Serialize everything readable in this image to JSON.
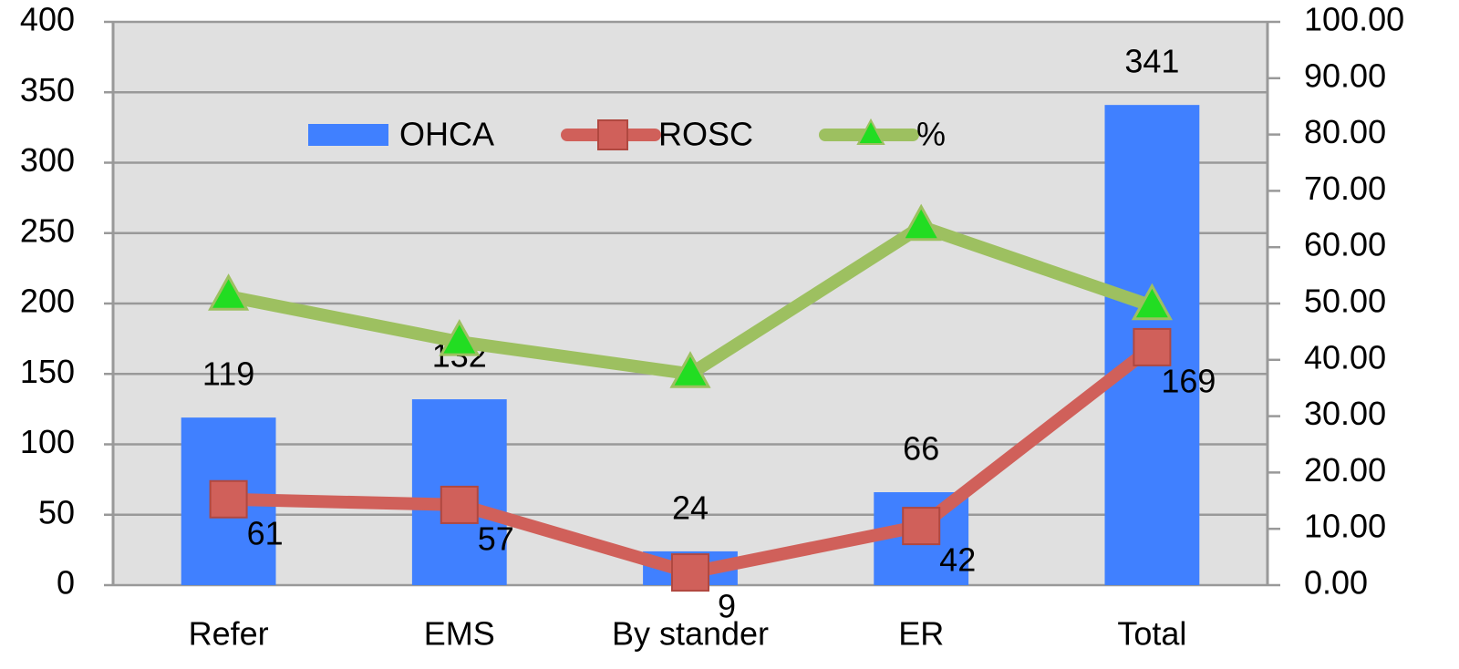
{
  "chart_data": {
    "type": "bar",
    "categories": [
      "Refer",
      "EMS",
      "By stander",
      "ER",
      "Total"
    ],
    "series": [
      {
        "name": "OHCA",
        "type": "bar",
        "color": "#4080ff",
        "values": [
          119,
          132,
          24,
          66,
          341
        ]
      },
      {
        "name": "ROSC",
        "type": "line",
        "marker": "square",
        "color": "#d0605a",
        "values": [
          61,
          57,
          9,
          42,
          169
        ]
      },
      {
        "name": "%",
        "type": "line",
        "marker": "triangle",
        "axis": "y2",
        "color": "#9dc060",
        "marker_color": "#22dd22",
        "values": [
          51.26,
          43.18,
          37.5,
          63.64,
          49.56
        ]
      }
    ],
    "ylim": [
      0,
      400
    ],
    "yticks": [
      0,
      50,
      100,
      150,
      200,
      250,
      300,
      350,
      400
    ],
    "y2lim": [
      0,
      100
    ],
    "y2ticks": [
      {
        "value": 0,
        "label": "0.00"
      },
      {
        "value": 10,
        "label": "10.00"
      },
      {
        "value": 20,
        "label": "20.00"
      },
      {
        "value": 30,
        "label": "30.00"
      },
      {
        "value": 40,
        "label": "40.00"
      },
      {
        "value": 50,
        "label": "50.00"
      },
      {
        "value": 60,
        "label": "60.00"
      },
      {
        "value": 70,
        "label": "70.00"
      },
      {
        "value": 80,
        "label": "80.00"
      },
      {
        "value": 90,
        "label": "90.00"
      },
      {
        "value": 100,
        "label": "100.00"
      }
    ],
    "grid": true,
    "legend": "top"
  }
}
